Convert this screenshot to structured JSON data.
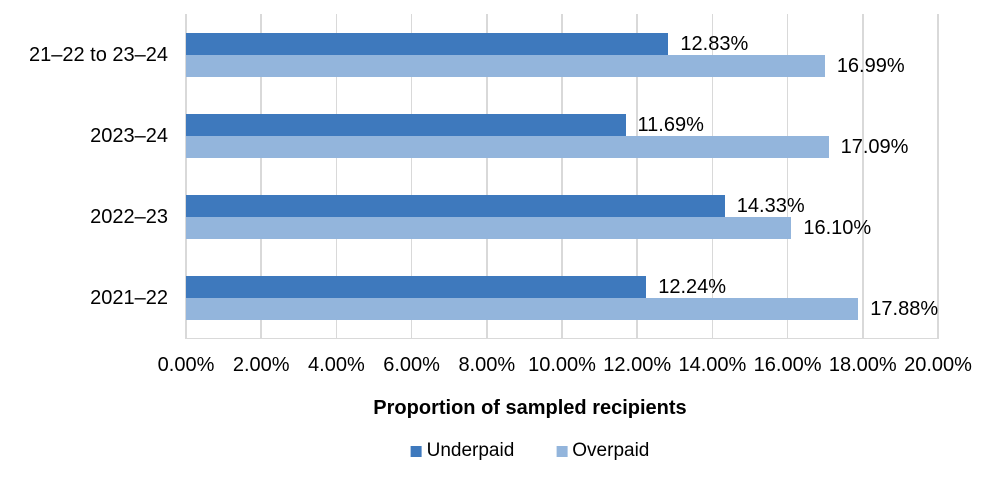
{
  "chart_data": {
    "type": "bar",
    "orientation": "horizontal",
    "title": "",
    "xlabel": "Proportion of sampled recipients",
    "ylabel": "",
    "xlim": [
      0,
      20
    ],
    "grid": true,
    "gridline_color": "#d9d9d9",
    "legend_position": "bottom",
    "categories": [
      "21–22 to 23–24",
      "2023–24",
      "2022–23",
      "2021–22"
    ],
    "series": [
      {
        "name": "Underpaid",
        "color": "#3e79bd",
        "values": [
          12.83,
          11.69,
          14.33,
          12.24
        ]
      },
      {
        "name": "Overpaid",
        "color": "#93b5dc",
        "values": [
          16.99,
          17.09,
          16.1,
          17.88
        ]
      }
    ],
    "data_labels": [
      [
        "12.83%",
        "11.69%",
        "14.33%",
        "12.24%"
      ],
      [
        "16.99%",
        "17.09%",
        "16.10%",
        "17.88%"
      ]
    ],
    "x_ticks": [
      "0.00%",
      "2.00%",
      "4.00%",
      "6.00%",
      "8.00%",
      "10.00%",
      "12.00%",
      "14.00%",
      "16.00%",
      "18.00%",
      "20.00%"
    ]
  }
}
